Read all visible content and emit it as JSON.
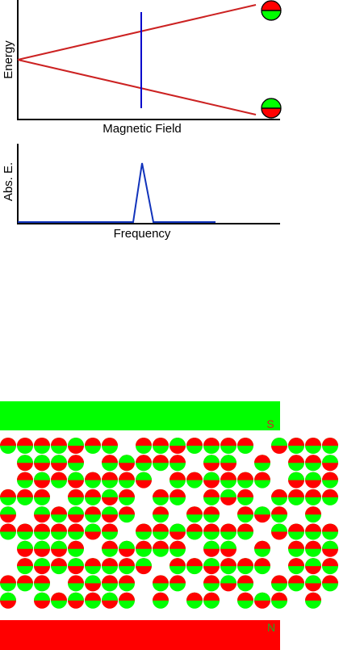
{
  "energy_diagram": {
    "ylabel": "Energy",
    "xlabel": "Magnetic Field",
    "upper_level_icon": "spin-red-top-green-bottom-icon",
    "lower_level_icon": "spin-green-top-red-bottom-icon"
  },
  "spectrum": {
    "ylabel": "Abs. E.",
    "xlabel": "Frequency"
  },
  "magnet": {
    "top_pole": "S",
    "bottom_pole": "N"
  },
  "colors": {
    "red": "#ff0000",
    "green": "#00ff00",
    "line_red": "#cc2222",
    "blue": "#0000cc",
    "axis": "#000000"
  },
  "spin_rows": [
    "UUUUDUUUUDUUUUDU",
    "DDDUUDUUUDDUUUDU",
    "UDUDUUUDUUDUUUDD",
    "UUUUUDUUUUDUUUUU",
    "DDUDUDUUUUUDUUUD",
    "UUUUUDUUUDUUUUDU",
    "DDDUUDUUUDDUUUDU",
    "UDUDUUUDUUDUUUUD",
    "UUUUDUUUUUDUUUDU",
    "DDUDUDUUUUUDUUDD"
  ],
  "spin_gaps": [
    [
      7,
      15
    ],
    [
      0,
      5,
      11,
      14,
      16
    ],
    [
      0,
      9,
      16
    ],
    [
      3,
      8,
      11,
      15
    ],
    [
      1,
      8,
      10,
      13,
      17,
      19
    ],
    [
      7,
      15
    ],
    [
      0,
      5,
      11,
      14,
      16
    ],
    [
      0,
      9,
      16
    ],
    [
      3,
      8,
      11,
      15
    ],
    [
      1,
      8,
      10,
      13,
      17,
      19
    ]
  ]
}
